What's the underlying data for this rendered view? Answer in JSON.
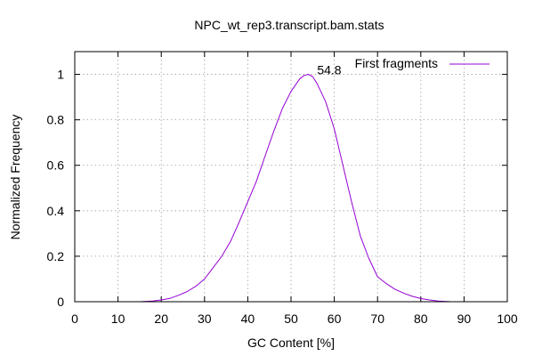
{
  "chart_data": {
    "type": "line",
    "title": "NPC_wt_rep3.transcript.bam.stats",
    "xlabel": "GC Content [%]",
    "ylabel": "Normalized Frequency",
    "xlim": [
      0,
      100
    ],
    "ylim": [
      0,
      1.1
    ],
    "x_ticks": [
      0,
      10,
      20,
      30,
      40,
      50,
      60,
      70,
      80,
      90,
      100
    ],
    "y_ticks": [
      0,
      0.2,
      0.4,
      0.6,
      0.8,
      1
    ],
    "y_tick_labels": [
      "0",
      "0.2",
      "0.4",
      "0.6",
      "0.8",
      "1"
    ],
    "grid": true,
    "legend_position": "top-right",
    "series": [
      {
        "name": "First fragments",
        "color": "#9400d3",
        "x": [
          15,
          18,
          20,
          22,
          24,
          26,
          28,
          30,
          32,
          34,
          36,
          38,
          40,
          42,
          44,
          46,
          48,
          50,
          52,
          53,
          54,
          55,
          56,
          58,
          60,
          62,
          64,
          66,
          68,
          70,
          72,
          74,
          76,
          78,
          80,
          82,
          84,
          86,
          87
        ],
        "y": [
          0,
          0.003,
          0.008,
          0.015,
          0.028,
          0.045,
          0.068,
          0.1,
          0.15,
          0.2,
          0.265,
          0.35,
          0.44,
          0.53,
          0.64,
          0.75,
          0.85,
          0.925,
          0.98,
          0.995,
          1.0,
          0.99,
          0.96,
          0.88,
          0.76,
          0.6,
          0.44,
          0.29,
          0.19,
          0.11,
          0.08,
          0.055,
          0.038,
          0.024,
          0.014,
          0.008,
          0.003,
          0.001,
          0
        ]
      }
    ],
    "annotations": [
      {
        "text": "54.8",
        "x": 54.8,
        "y": 1.0
      }
    ]
  }
}
